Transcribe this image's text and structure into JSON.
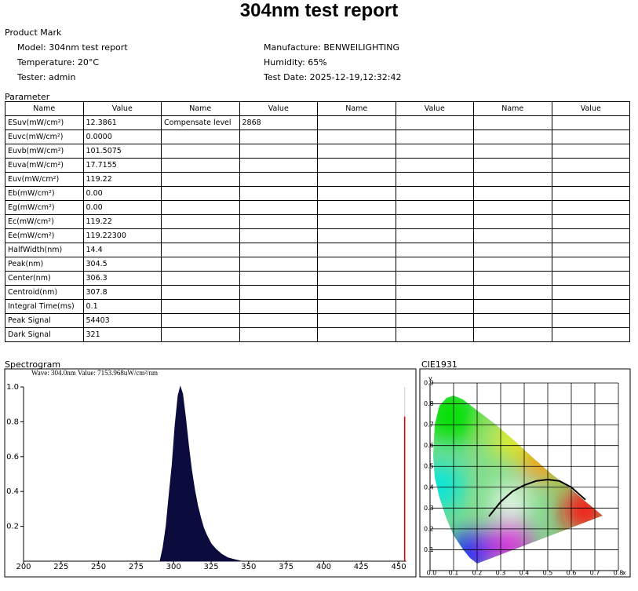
{
  "title": "304nm test report",
  "product_mark": {
    "heading": "Product Mark",
    "left": [
      "Model: 304nm test report",
      "Temperature: 20°C",
      "Tester: admin"
    ],
    "right": [
      "Manufacture: BENWEILIGHTING",
      "Humidity: 65%",
      "Test Date: 2025-12-19,12:32:42"
    ]
  },
  "parameter": {
    "heading": "Parameter",
    "columns": [
      "Name",
      "Value",
      "Name",
      "Value",
      "Name",
      "Value",
      "Name",
      "Value"
    ],
    "rows": [
      [
        "ESuv(mW/cm²)",
        "12.3861",
        "Compensate level",
        "2868"
      ],
      [
        "Euvc(mW/cm²)",
        "0.0000"
      ],
      [
        "Euvb(mW/cm²)",
        "101.5075"
      ],
      [
        "Euva(mW/cm²)",
        "17.7155"
      ],
      [
        "Euv(mW/cm²)",
        "119.22"
      ],
      [
        "Eb(mW/cm²)",
        "0.00"
      ],
      [
        "Eg(mW/cm²)",
        "0.00"
      ],
      [
        "Ec(mW/cm²)",
        "119.22"
      ],
      [
        "Ee(mW/cm²)",
        "119.22300"
      ],
      [
        "HalfWidth(nm)",
        "14.4"
      ],
      [
        "Peak(nm)",
        "304.5"
      ],
      [
        "Center(nm)",
        "306.3"
      ],
      [
        "Centroid(nm)",
        "307.8"
      ],
      [
        "Integral Time(ms)",
        "0.1"
      ],
      [
        "Peak Signal",
        "54403"
      ],
      [
        "Dark Signal",
        "321"
      ]
    ]
  },
  "spectrogram": {
    "type": "area",
    "heading": "Spectrogram",
    "readout": "Wave: 304.0nm Value: 7153.968uW/cm²/nm",
    "x": [
      291,
      293,
      295,
      297,
      299,
      301,
      303,
      304.5,
      306,
      308,
      310,
      312,
      314,
      316,
      318,
      320,
      322,
      325,
      328,
      332,
      336,
      340,
      345
    ],
    "values": [
      0,
      0.08,
      0.2,
      0.38,
      0.55,
      0.78,
      0.95,
      1.0,
      0.96,
      0.82,
      0.66,
      0.52,
      0.41,
      0.32,
      0.25,
      0.19,
      0.15,
      0.1,
      0.07,
      0.04,
      0.02,
      0.01,
      0
    ],
    "color": "#0b0b3e",
    "xlim": [
      200,
      455
    ],
    "ylim": [
      0,
      1.0
    ],
    "xticks": [
      200,
      225,
      250,
      275,
      300,
      325,
      350,
      375,
      400,
      425,
      450
    ],
    "yticks": [
      0.2,
      0.4,
      0.6,
      0.8,
      {
        "value": 1,
        "label": "1.0"
      }
    ],
    "marker": {
      "x": 454,
      "value": 0.83,
      "color": "#e00000"
    }
  },
  "cie": {
    "heading": "CIE1931",
    "xlabel": "x",
    "ylabel": "y",
    "xlim": [
      0,
      0.8
    ],
    "ylim": [
      0,
      0.9
    ],
    "xticks": [
      {
        "value": 0,
        "label": "0.0"
      },
      0.1,
      0.2,
      0.3,
      0.4,
      0.5,
      0.6,
      0.7,
      0.8
    ],
    "yticks": [
      0.1,
      0.2,
      0.3,
      0.4,
      0.5,
      0.6,
      0.7,
      0.8,
      0.9
    ],
    "locus": {
      "x": [
        0.25,
        0.3,
        0.35,
        0.4,
        0.45,
        0.5,
        0.55,
        0.6,
        0.66
      ],
      "y": [
        0.26,
        0.33,
        0.38,
        0.41,
        0.43,
        0.437,
        0.43,
        0.4,
        0.34
      ]
    }
  }
}
